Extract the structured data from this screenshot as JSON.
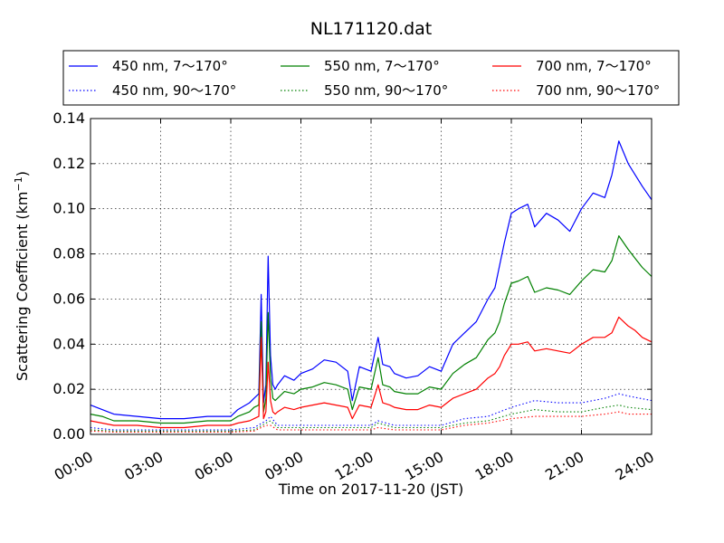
{
  "chart_data": {
    "type": "line",
    "title": "NL171120.dat",
    "xlabel": "Time on 2017-11-20 (JST)",
    "ylabel": "Scattering Coefficient (km",
    "ylabel_sup": "−1",
    "ylabel_close": ")",
    "x_unit": "hours",
    "xlim": [
      0,
      24
    ],
    "ylim": [
      0,
      0.14
    ],
    "grid": true,
    "legend_placement": "top, above plot, 3 columns",
    "x_ticks": [
      0,
      3,
      6,
      9,
      12,
      15,
      18,
      21,
      24
    ],
    "x_tick_labels": [
      "00:00",
      "03:00",
      "06:00",
      "09:00",
      "12:00",
      "15:00",
      "18:00",
      "21:00",
      "24:00"
    ],
    "y_ticks": [
      0,
      0.02,
      0.04,
      0.06,
      0.08,
      0.1,
      0.12,
      0.14
    ],
    "y_tick_labels": [
      "0.00",
      "0.02",
      "0.04",
      "0.06",
      "0.08",
      "0.10",
      "0.12",
      "0.14"
    ],
    "series": [
      {
        "name": "450 nm, 7～170°",
        "color": "#0000ff",
        "style": "solid",
        "x": [
          0,
          0.5,
          1,
          2,
          3,
          4,
          5,
          6,
          6.3,
          6.8,
          7.0,
          7.2,
          7.3,
          7.4,
          7.5,
          7.6,
          7.7,
          7.8,
          7.9,
          8.0,
          8.3,
          8.7,
          9,
          9.5,
          10,
          10.5,
          11,
          11.2,
          11.5,
          12,
          12.3,
          12.5,
          12.8,
          13,
          13.5,
          14,
          14.5,
          15,
          15.5,
          16,
          16.5,
          17,
          17.3,
          17.5,
          17.7,
          18,
          18.3,
          18.7,
          19,
          19.5,
          20,
          20.5,
          21,
          21.5,
          22,
          22.3,
          22.6,
          23,
          23.3,
          23.6,
          24
        ],
        "y": [
          0.013,
          0.011,
          0.009,
          0.008,
          0.007,
          0.007,
          0.008,
          0.008,
          0.011,
          0.014,
          0.016,
          0.018,
          0.062,
          0.014,
          0.022,
          0.079,
          0.035,
          0.022,
          0.02,
          0.022,
          0.026,
          0.024,
          0.027,
          0.029,
          0.033,
          0.032,
          0.028,
          0.015,
          0.03,
          0.028,
          0.043,
          0.031,
          0.03,
          0.027,
          0.025,
          0.026,
          0.03,
          0.028,
          0.04,
          0.045,
          0.05,
          0.06,
          0.065,
          0.075,
          0.085,
          0.098,
          0.1,
          0.102,
          0.092,
          0.098,
          0.095,
          0.09,
          0.1,
          0.107,
          0.105,
          0.115,
          0.13,
          0.12,
          0.115,
          0.11,
          0.104
        ]
      },
      {
        "name": "550 nm, 7～170°",
        "color": "#008000",
        "style": "solid",
        "x": [
          0,
          0.5,
          1,
          2,
          3,
          4,
          5,
          6,
          6.3,
          6.8,
          7.0,
          7.2,
          7.3,
          7.4,
          7.5,
          7.6,
          7.7,
          7.8,
          7.9,
          8.0,
          8.3,
          8.7,
          9,
          9.5,
          10,
          10.5,
          11,
          11.2,
          11.5,
          12,
          12.3,
          12.5,
          12.8,
          13,
          13.5,
          14,
          14.5,
          15,
          15.5,
          16,
          16.5,
          17,
          17.3,
          17.5,
          17.7,
          18,
          18.3,
          18.7,
          19,
          19.5,
          20,
          20.5,
          21,
          21.5,
          22,
          22.3,
          22.6,
          23,
          23.3,
          23.6,
          24
        ],
        "y": [
          0.009,
          0.008,
          0.006,
          0.006,
          0.005,
          0.005,
          0.006,
          0.006,
          0.008,
          0.01,
          0.012,
          0.013,
          0.05,
          0.01,
          0.016,
          0.054,
          0.025,
          0.016,
          0.015,
          0.016,
          0.019,
          0.018,
          0.02,
          0.021,
          0.023,
          0.022,
          0.02,
          0.011,
          0.021,
          0.02,
          0.034,
          0.022,
          0.021,
          0.019,
          0.018,
          0.018,
          0.021,
          0.02,
          0.027,
          0.031,
          0.034,
          0.042,
          0.045,
          0.05,
          0.058,
          0.067,
          0.068,
          0.07,
          0.063,
          0.065,
          0.064,
          0.062,
          0.068,
          0.073,
          0.072,
          0.077,
          0.088,
          0.082,
          0.078,
          0.074,
          0.07
        ]
      },
      {
        "name": "700 nm, 7～170°",
        "color": "#ff0000",
        "style": "solid",
        "x": [
          0,
          0.5,
          1,
          2,
          3,
          4,
          5,
          6,
          6.3,
          6.8,
          7.0,
          7.2,
          7.3,
          7.4,
          7.5,
          7.6,
          7.7,
          7.8,
          7.9,
          8.0,
          8.3,
          8.7,
          9,
          9.5,
          10,
          10.5,
          11,
          11.2,
          11.5,
          12,
          12.3,
          12.5,
          12.8,
          13,
          13.5,
          14,
          14.5,
          15,
          15.5,
          16,
          16.5,
          17,
          17.3,
          17.5,
          17.7,
          18,
          18.3,
          18.7,
          19,
          19.5,
          20,
          20.5,
          21,
          21.5,
          22,
          22.3,
          22.6,
          23,
          23.3,
          23.6,
          24
        ],
        "y": [
          0.006,
          0.005,
          0.004,
          0.004,
          0.003,
          0.003,
          0.004,
          0.004,
          0.005,
          0.006,
          0.007,
          0.008,
          0.043,
          0.007,
          0.01,
          0.032,
          0.015,
          0.01,
          0.009,
          0.01,
          0.012,
          0.011,
          0.012,
          0.013,
          0.014,
          0.013,
          0.012,
          0.007,
          0.013,
          0.012,
          0.022,
          0.014,
          0.013,
          0.012,
          0.011,
          0.011,
          0.013,
          0.012,
          0.016,
          0.018,
          0.02,
          0.025,
          0.027,
          0.03,
          0.035,
          0.04,
          0.04,
          0.041,
          0.037,
          0.038,
          0.037,
          0.036,
          0.04,
          0.043,
          0.043,
          0.045,
          0.052,
          0.048,
          0.046,
          0.043,
          0.041
        ]
      },
      {
        "name": "450 nm, 90～170°",
        "color": "#0000ff",
        "style": "dotted",
        "x": [
          0,
          1,
          2,
          3,
          4,
          5,
          6,
          7,
          7.5,
          7.7,
          8,
          9,
          10,
          11,
          12,
          12.3,
          13,
          14,
          15,
          16,
          17,
          18,
          19,
          20,
          21,
          22,
          22.6,
          23,
          24
        ],
        "y": [
          0.003,
          0.002,
          0.002,
          0.002,
          0.002,
          0.002,
          0.002,
          0.003,
          0.006,
          0.008,
          0.004,
          0.004,
          0.004,
          0.004,
          0.004,
          0.006,
          0.004,
          0.004,
          0.004,
          0.007,
          0.008,
          0.012,
          0.015,
          0.014,
          0.014,
          0.016,
          0.018,
          0.017,
          0.015
        ]
      },
      {
        "name": "550 nm, 90～170°",
        "color": "#008000",
        "style": "dotted",
        "x": [
          0,
          1,
          2,
          3,
          4,
          5,
          6,
          7,
          7.5,
          7.7,
          8,
          9,
          10,
          11,
          12,
          12.3,
          13,
          14,
          15,
          16,
          17,
          18,
          19,
          20,
          21,
          22,
          22.6,
          23,
          24
        ],
        "y": [
          0.002,
          0.0015,
          0.0015,
          0.0015,
          0.0015,
          0.0015,
          0.0015,
          0.002,
          0.005,
          0.006,
          0.003,
          0.003,
          0.003,
          0.003,
          0.003,
          0.005,
          0.003,
          0.003,
          0.003,
          0.005,
          0.006,
          0.009,
          0.011,
          0.01,
          0.01,
          0.012,
          0.013,
          0.012,
          0.011
        ]
      },
      {
        "name": "700 nm, 90～170°",
        "color": "#ff0000",
        "style": "dotted",
        "x": [
          0,
          1,
          2,
          3,
          4,
          5,
          6,
          7,
          7.5,
          7.7,
          8,
          9,
          10,
          11,
          12,
          12.3,
          13,
          14,
          15,
          16,
          17,
          18,
          19,
          20,
          21,
          22,
          22.6,
          23,
          24
        ],
        "y": [
          0.0015,
          0.001,
          0.001,
          0.001,
          0.001,
          0.001,
          0.001,
          0.0015,
          0.004,
          0.004,
          0.002,
          0.002,
          0.002,
          0.002,
          0.002,
          0.003,
          0.002,
          0.002,
          0.002,
          0.004,
          0.005,
          0.007,
          0.008,
          0.008,
          0.008,
          0.009,
          0.01,
          0.009,
          0.009
        ]
      }
    ]
  }
}
